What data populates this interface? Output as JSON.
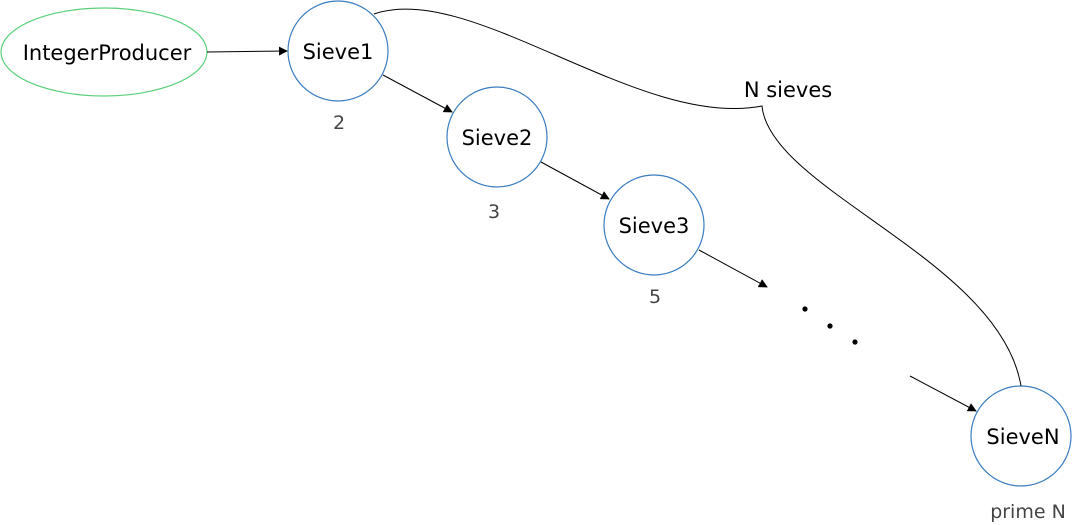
{
  "diagram": {
    "producer": {
      "label": "IntegerProducer",
      "color": "#5ccf7a"
    },
    "sieves": [
      {
        "label": "Sieve1",
        "prime": "2"
      },
      {
        "label": "Sieve2",
        "prime": "3"
      },
      {
        "label": "Sieve3",
        "prime": "5"
      },
      {
        "label": "SieveN",
        "prime": "prime N"
      }
    ],
    "sieve_color": "#3b7dc0",
    "brace_label": "N sieves",
    "ellipsis": "• • •"
  }
}
